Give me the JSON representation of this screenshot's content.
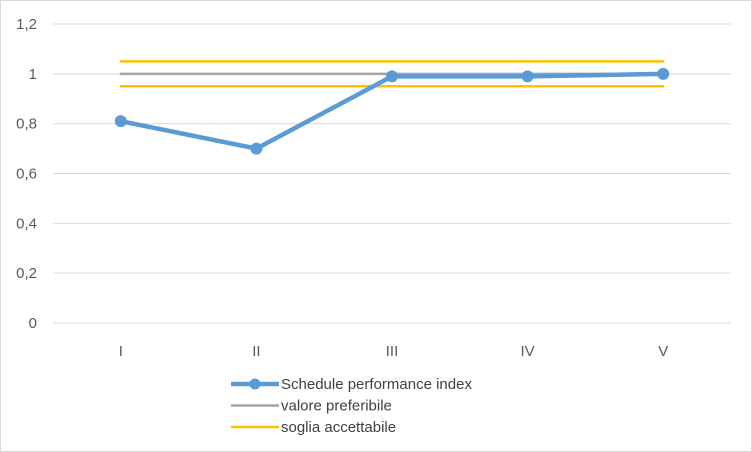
{
  "chart_data": {
    "type": "line",
    "title": "",
    "xlabel": "",
    "ylabel": "",
    "categories": [
      "I",
      "II",
      "III",
      "IV",
      "V"
    ],
    "ylim": [
      0,
      1.2
    ],
    "y_ticks": [
      0,
      0.2,
      0.4,
      0.6,
      0.8,
      1,
      1.2
    ],
    "y_tick_labels": [
      "0",
      "0,2",
      "0,4",
      "0,6",
      "0,8",
      "1",
      "1,2"
    ],
    "grid": "horizontal",
    "legend_position": "bottom",
    "series": [
      {
        "name": "Schedule performance index",
        "values": [
          0.81,
          0.7,
          0.99,
          0.99,
          1.0
        ],
        "color": "#5b9bd5",
        "markers": true
      },
      {
        "name": "valore preferibile",
        "values": [
          1,
          1,
          1,
          1,
          1
        ],
        "color": "#a5a5a5",
        "markers": false
      },
      {
        "name": "soglia accettabile",
        "values": [
          1.05,
          1.05,
          1.05,
          1.05,
          1.05
        ],
        "color": "#ffc000",
        "markers": false
      },
      {
        "name": "",
        "values": [
          0.95,
          0.95,
          0.95,
          0.95,
          0.95
        ],
        "color": "#ffc000",
        "markers": false
      }
    ]
  }
}
